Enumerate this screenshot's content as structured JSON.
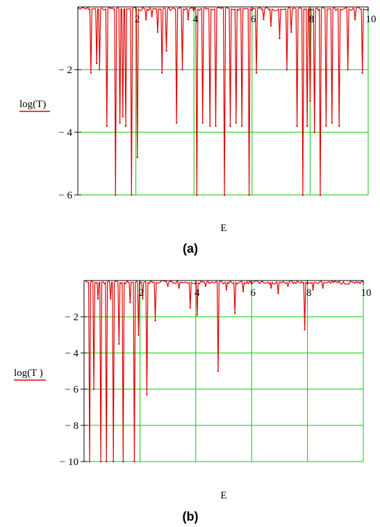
{
  "chart_data": [
    {
      "type": "line",
      "panel_label": "(a)",
      "xlabel": "E",
      "ylabel": "log(T)",
      "xlim": [
        0,
        10
      ],
      "ylim": [
        -6,
        0
      ],
      "x_ticks": [
        2,
        4,
        6,
        8,
        10
      ],
      "y_ticks": [
        -2,
        -4,
        -6
      ],
      "x_tick_labels": [
        "2",
        "4",
        "6",
        "8",
        "10"
      ],
      "y_tick_labels": [
        "− 2",
        "− 4",
        "− 6"
      ],
      "grid": true,
      "line_color": "#e00000",
      "grid_color": "#00cc00",
      "series": [
        {
          "dips": [
            {
              "x": 0.45,
              "y": -2.1
            },
            {
              "x": 0.65,
              "y": -1.8
            },
            {
              "x": 0.75,
              "y": -2.0
            },
            {
              "x": 1.0,
              "y": -3.8
            },
            {
              "x": 1.3,
              "y": -6.0
            },
            {
              "x": 1.45,
              "y": -3.7
            },
            {
              "x": 1.55,
              "y": -3.5
            },
            {
              "x": 1.65,
              "y": -3.8
            },
            {
              "x": 1.85,
              "y": -6.0
            },
            {
              "x": 2.05,
              "y": -4.8
            },
            {
              "x": 2.35,
              "y": -0.4
            },
            {
              "x": 2.55,
              "y": -0.3
            },
            {
              "x": 2.75,
              "y": -0.8
            },
            {
              "x": 2.9,
              "y": -2.1
            },
            {
              "x": 3.05,
              "y": -1.4
            },
            {
              "x": 3.4,
              "y": -3.7
            },
            {
              "x": 3.6,
              "y": -2.0
            },
            {
              "x": 3.8,
              "y": -0.4
            },
            {
              "x": 4.1,
              "y": -6.0
            },
            {
              "x": 4.3,
              "y": -3.7
            },
            {
              "x": 4.55,
              "y": -3.8
            },
            {
              "x": 4.75,
              "y": -3.8
            },
            {
              "x": 5.05,
              "y": -6.0
            },
            {
              "x": 5.25,
              "y": -3.8
            },
            {
              "x": 5.45,
              "y": -3.7
            },
            {
              "x": 5.65,
              "y": -3.8
            },
            {
              "x": 5.9,
              "y": -6.0
            },
            {
              "x": 6.15,
              "y": -2.1
            },
            {
              "x": 6.4,
              "y": -0.4
            },
            {
              "x": 6.65,
              "y": -0.6
            },
            {
              "x": 6.95,
              "y": -1.0
            },
            {
              "x": 7.2,
              "y": -2.0
            },
            {
              "x": 7.35,
              "y": -0.8
            },
            {
              "x": 7.55,
              "y": -3.8
            },
            {
              "x": 7.75,
              "y": -6.0
            },
            {
              "x": 7.9,
              "y": -3.8
            },
            {
              "x": 8.0,
              "y": -3.0
            },
            {
              "x": 8.15,
              "y": -4.0
            },
            {
              "x": 8.35,
              "y": -6.0
            },
            {
              "x": 8.55,
              "y": -3.8
            },
            {
              "x": 8.75,
              "y": -3.7
            },
            {
              "x": 9.0,
              "y": -3.8
            },
            {
              "x": 9.3,
              "y": -2.0
            },
            {
              "x": 9.55,
              "y": -0.4
            },
            {
              "x": 9.8,
              "y": -2.1
            }
          ]
        }
      ]
    },
    {
      "type": "line",
      "panel_label": "(b)",
      "xlabel": "E",
      "ylabel": "log(T )",
      "xlim": [
        0,
        10
      ],
      "ylim": [
        -10,
        0
      ],
      "x_ticks": [
        2,
        4,
        6,
        8,
        10
      ],
      "y_ticks": [
        -2,
        -4,
        -6,
        -8,
        -10
      ],
      "x_tick_labels": [
        "2",
        "4",
        "6",
        "8",
        "10"
      ],
      "y_tick_labels": [
        "− 2",
        "− 4",
        "− 6",
        "− 8",
        "− 10"
      ],
      "grid": true,
      "line_color": "#e00000",
      "grid_color": "#00cc00",
      "series": [
        {
          "dips": [
            {
              "x": 0.2,
              "y": -10.0
            },
            {
              "x": 0.35,
              "y": -6.0
            },
            {
              "x": 0.5,
              "y": -1.0
            },
            {
              "x": 0.6,
              "y": -10.0
            },
            {
              "x": 0.8,
              "y": -10.0
            },
            {
              "x": 0.95,
              "y": -1.0
            },
            {
              "x": 1.05,
              "y": -10.0
            },
            {
              "x": 1.25,
              "y": -3.5
            },
            {
              "x": 1.4,
              "y": -10.0
            },
            {
              "x": 1.65,
              "y": -1.2
            },
            {
              "x": 1.8,
              "y": -10.0
            },
            {
              "x": 1.95,
              "y": -3.0
            },
            {
              "x": 2.1,
              "y": -1.0
            },
            {
              "x": 2.25,
              "y": -6.3
            },
            {
              "x": 2.55,
              "y": -2.2
            },
            {
              "x": 3.0,
              "y": -0.3
            },
            {
              "x": 3.4,
              "y": -0.4
            },
            {
              "x": 3.8,
              "y": -1.5
            },
            {
              "x": 4.05,
              "y": -1.9
            },
            {
              "x": 4.35,
              "y": -0.3
            },
            {
              "x": 4.8,
              "y": -5.0
            },
            {
              "x": 5.1,
              "y": -0.5
            },
            {
              "x": 5.4,
              "y": -1.8
            },
            {
              "x": 5.7,
              "y": -0.6
            },
            {
              "x": 6.7,
              "y": -0.4
            },
            {
              "x": 6.95,
              "y": -0.7
            },
            {
              "x": 7.3,
              "y": -0.3
            },
            {
              "x": 7.9,
              "y": -2.7
            },
            {
              "x": 8.2,
              "y": -0.5
            },
            {
              "x": 8.55,
              "y": -0.4
            }
          ]
        }
      ]
    }
  ]
}
